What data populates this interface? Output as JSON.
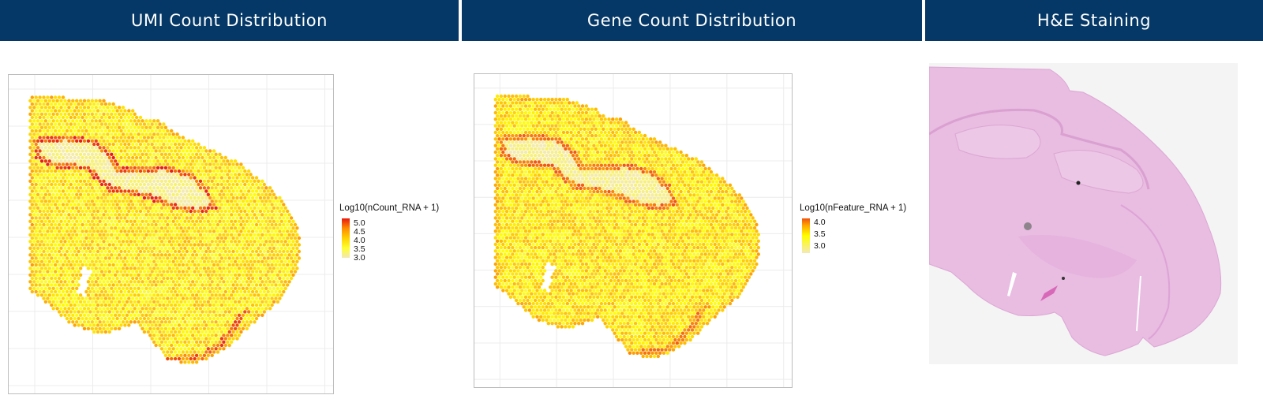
{
  "panels": [
    {
      "header": "UMI Count Distribution"
    },
    {
      "header": "Gene Count Distribution"
    },
    {
      "header": "H&E Staining"
    }
  ],
  "chart_data": [
    {
      "type": "scatter",
      "title": "UMI Count Distribution",
      "legend": {
        "title": "Log10(nCount_RNA + 1)",
        "ticks": [
          "5.0",
          "4.5",
          "4.0",
          "3.5",
          "3.0"
        ],
        "range": [
          3.0,
          5.0
        ],
        "placement": "right"
      },
      "colorscale": [
        "#f3e9b8",
        "#ffff00",
        "#ffa500",
        "#e8190f"
      ],
      "grid": true
    },
    {
      "type": "scatter",
      "title": "Gene Count Distribution",
      "legend": {
        "title": "Log10(nFeature_RNA + 1)",
        "ticks": [
          "4.0",
          "3.5",
          "3.0"
        ],
        "range": [
          2.8,
          4.1
        ],
        "placement": "right"
      },
      "colorscale": [
        "#f3e9b8",
        "#ffff00",
        "#ffa500",
        "#f0520f"
      ],
      "grid": true
    }
  ],
  "colors": {
    "header_bg": "#053866",
    "tissue": "#e9b9e1"
  }
}
